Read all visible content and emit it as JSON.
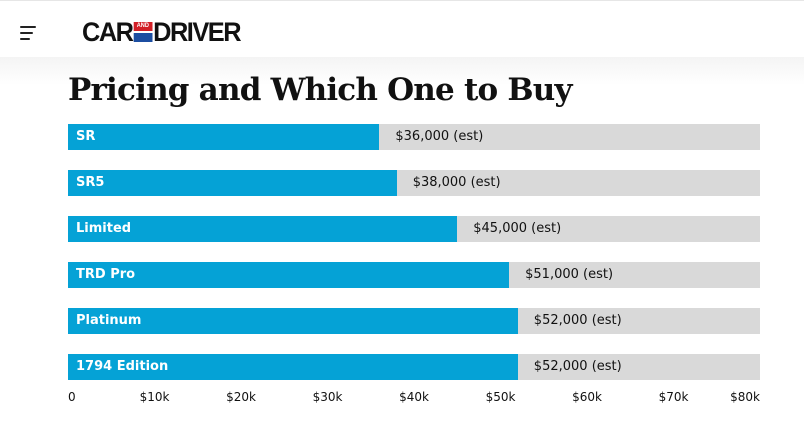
{
  "header": {
    "brand": {
      "left": "CAR",
      "middle": "AND",
      "right": "DRIVER"
    },
    "colors": {
      "brand_red": "#d21f26",
      "brand_blue": "#1c4ea1"
    }
  },
  "title": "Pricing and Which One to Buy",
  "chart_data": {
    "type": "bar",
    "orientation": "horizontal",
    "categories": [
      "SR",
      "SR5",
      "Limited",
      "TRD Pro",
      "Platinum",
      "1794 Edition"
    ],
    "values": [
      36000,
      38000,
      45000,
      51000,
      52000,
      52000
    ],
    "value_labels": [
      "$36,000 (est)",
      "$38,000 (est)",
      "$45,000 (est)",
      "$51,000 (est)",
      "$52,000 (est)",
      "$52,000 (est)"
    ],
    "xlim": [
      0,
      80000
    ],
    "ticks": [
      0,
      10000,
      20000,
      30000,
      40000,
      50000,
      60000,
      70000,
      80000
    ],
    "tick_labels": [
      "0",
      "$10k",
      "$20k",
      "$30k",
      "$40k",
      "$50k",
      "$60k",
      "$70k",
      "$80k"
    ],
    "grid": false,
    "colors": {
      "bar": "#05a2d6",
      "track": "#d9d9d9"
    }
  }
}
